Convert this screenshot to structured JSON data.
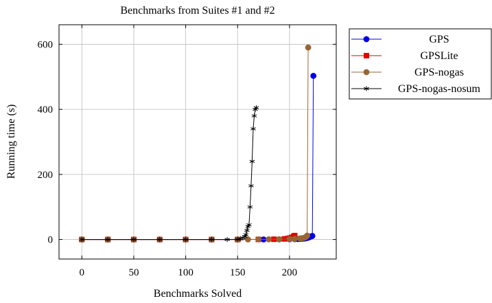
{
  "chart_data": {
    "type": "line",
    "title": "Benchmarks from Suites #1 and #2",
    "xlabel": "Benchmarks Solved",
    "ylabel": "Running time (s)",
    "xlim": [
      -22,
      245
    ],
    "ylim": [
      -60,
      660
    ],
    "xticks": [
      0,
      50,
      100,
      150,
      200
    ],
    "yticks": [
      0,
      200,
      400,
      600
    ],
    "grid": true,
    "legend": "outside-right",
    "series": [
      {
        "name": "GPS",
        "color": "#0000e6",
        "marker": "circle",
        "x": [
          0,
          25,
          50,
          75,
          100,
          125,
          150,
          175,
          190,
          200,
          205,
          208,
          210,
          212,
          214,
          215,
          216,
          217,
          218,
          219,
          220,
          221,
          222,
          223
        ],
        "y": [
          0,
          0,
          0,
          0,
          0,
          0,
          0,
          0.2,
          0.4,
          0.8,
          1.1,
          1.4,
          1.8,
          2.3,
          2.9,
          3.4,
          4,
          4.8,
          5.8,
          7,
          8.5,
          10,
          11,
          503
        ]
      },
      {
        "name": "GPSLite",
        "color": "#e60000",
        "marker": "square",
        "x": [
          0,
          25,
          50,
          75,
          100,
          125,
          150,
          170,
          185,
          195,
          198,
          200,
          202,
          204,
          205
        ],
        "y": [
          0,
          0,
          0,
          0,
          0,
          0,
          0,
          0.3,
          0.8,
          1.8,
          2.8,
          4.2,
          6.5,
          9.5,
          12
        ]
      },
      {
        "name": "GPS-nogas",
        "color": "#996633",
        "marker": "circle",
        "x": [
          0,
          25,
          50,
          75,
          100,
          125,
          150,
          160,
          170,
          180,
          190,
          200,
          205,
          210,
          212,
          214,
          215,
          216,
          217,
          218
        ],
        "y": [
          0,
          0,
          0,
          0,
          0,
          0,
          0,
          0.1,
          0.3,
          0.6,
          1,
          1.6,
          2.2,
          3.2,
          4,
          5.2,
          6.5,
          8.5,
          12,
          590
        ]
      },
      {
        "name": "GPS-nogas-nosum",
        "color": "#000000",
        "marker": "star",
        "x": [
          0,
          25,
          50,
          75,
          100,
          125,
          140,
          150,
          153,
          155,
          157,
          158,
          159,
          160,
          161,
          162,
          163,
          164,
          165,
          166,
          167,
          168
        ],
        "y": [
          0,
          0,
          0,
          0,
          0,
          0,
          0,
          0.5,
          2,
          5,
          9,
          15,
          28,
          40,
          45,
          100,
          165,
          240,
          340,
          380,
          400,
          405
        ]
      }
    ]
  }
}
